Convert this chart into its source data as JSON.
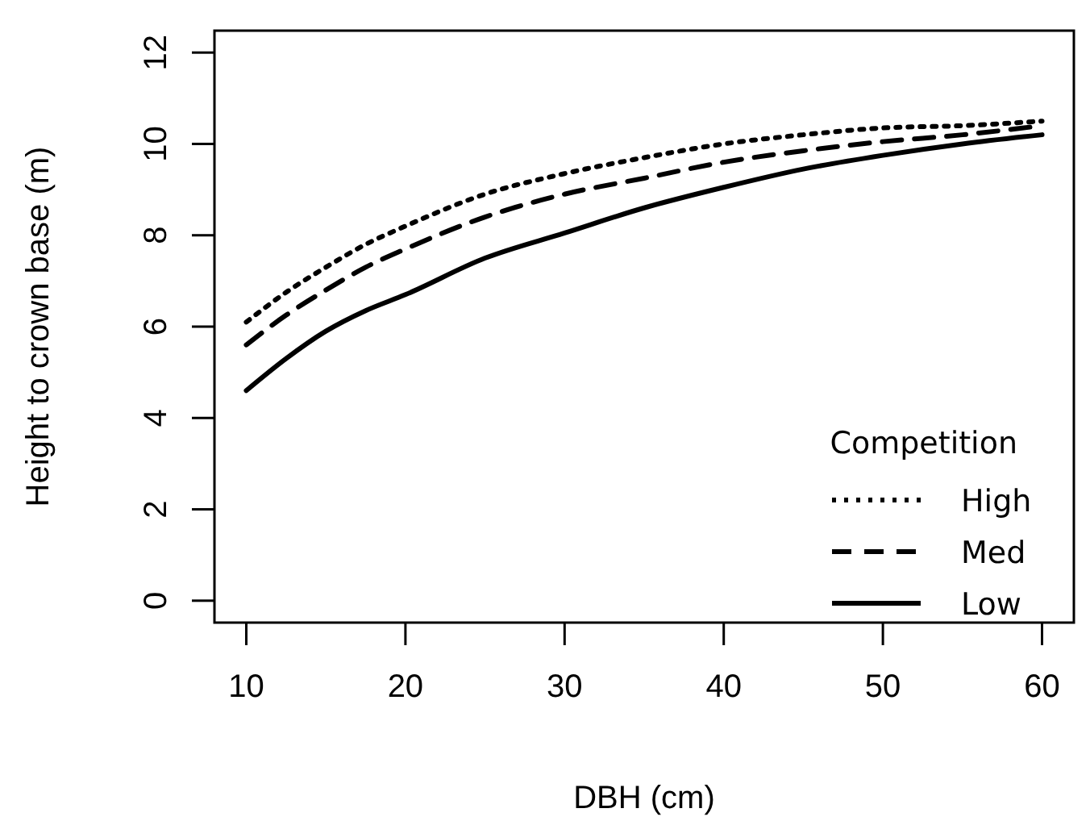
{
  "chart_data": {
    "type": "line",
    "xlabel": "DBH (cm)",
    "ylabel": "Height to crown base (m)",
    "legend_title": "Competition",
    "legend": "bottom right",
    "grid": false,
    "xlim": [
      8,
      62
    ],
    "ylim": [
      -0.48,
      12.48
    ],
    "xticks": [
      10,
      20,
      30,
      40,
      50,
      60
    ],
    "yticks": [
      0,
      2,
      4,
      6,
      8,
      10,
      12
    ],
    "x": [
      10,
      12.5,
      15,
      17.5,
      20,
      25,
      30,
      35,
      40,
      45,
      50,
      55,
      60
    ],
    "series": [
      {
        "name": "High",
        "color": "#000000",
        "line_style": "dotted",
        "values": [
          6.1,
          6.75,
          7.3,
          7.8,
          8.2,
          8.9,
          9.35,
          9.7,
          10.0,
          10.2,
          10.35,
          10.4,
          10.5
        ]
      },
      {
        "name": "Med",
        "color": "#000000",
        "line_style": "dashed",
        "values": [
          5.6,
          6.25,
          6.8,
          7.3,
          7.7,
          8.4,
          8.9,
          9.25,
          9.6,
          9.85,
          10.05,
          10.2,
          10.4
        ]
      },
      {
        "name": "Low",
        "color": "#000000",
        "line_style": "solid",
        "values": [
          4.6,
          5.3,
          5.9,
          6.35,
          6.7,
          7.5,
          8.05,
          8.6,
          9.05,
          9.45,
          9.75,
          10.0,
          10.2
        ]
      }
    ]
  }
}
